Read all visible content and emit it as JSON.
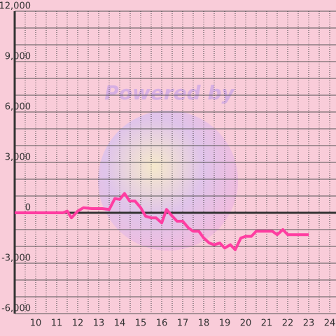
{
  "watermark": "Powered by",
  "chart_data": {
    "type": "line",
    "x": [
      9.0,
      11.3,
      11.5,
      11.7,
      12.0,
      12.27,
      12.67,
      13.17,
      13.5,
      13.77,
      14.0,
      14.23,
      14.47,
      14.73,
      15.0,
      15.23,
      15.5,
      15.73,
      16.0,
      16.23,
      16.5,
      16.73,
      17.0,
      17.27,
      17.5,
      17.77,
      18.0,
      18.27,
      18.5,
      18.77,
      19.0,
      19.27,
      19.5,
      19.77,
      20.0,
      20.27,
      20.5,
      21.0,
      21.27,
      21.5,
      21.77,
      22.0,
      23.0
    ],
    "values": [
      0,
      0,
      100,
      -300,
      100,
      300,
      250,
      250,
      200,
      850,
      800,
      1150,
      700,
      700,
      300,
      -200,
      -300,
      -300,
      -600,
      200,
      -200,
      -500,
      -500,
      -900,
      -1100,
      -1100,
      -1500,
      -1800,
      -1900,
      -1800,
      -2100,
      -1900,
      -2200,
      -1500,
      -1400,
      -1400,
      -1100,
      -1100,
      -1100,
      -1300,
      -1000,
      -1300,
      -1300
    ],
    "color": "#ff3da1",
    "xlim": [
      9,
      24.3
    ],
    "xticks": [
      10,
      11,
      12,
      13,
      14,
      15,
      16,
      17,
      18,
      19,
      20,
      21,
      22,
      23,
      24
    ],
    "ylim": [
      -6000,
      12000
    ],
    "yticks": [
      {
        "value": -6000,
        "label": "-6,000"
      },
      {
        "value": -3000,
        "label": "-3,000"
      },
      0,
      {
        "value": 3000,
        "label": "3,000"
      },
      {
        "value": 6000,
        "label": "6,000"
      },
      {
        "value": 9000,
        "label": "9,000"
      },
      {
        "value": 12000,
        "label": "12,000"
      }
    ],
    "grid": true
  }
}
